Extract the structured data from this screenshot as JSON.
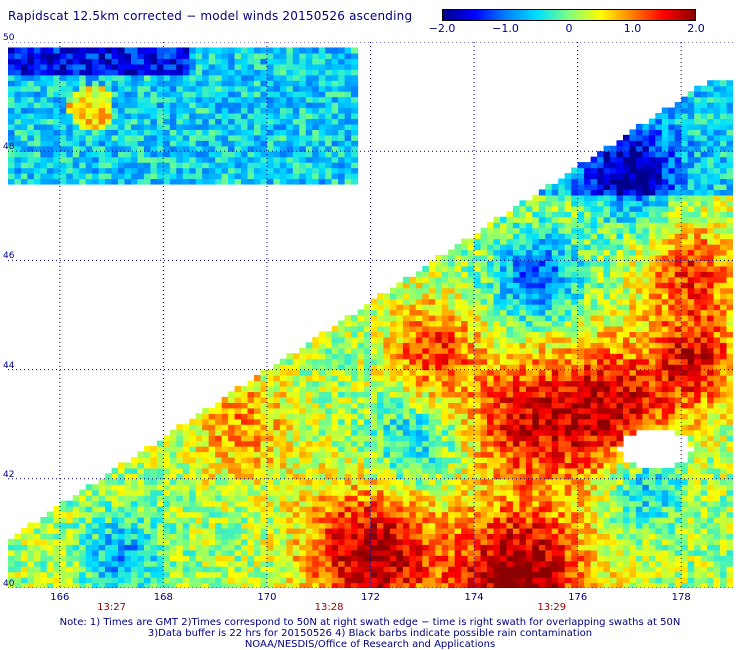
{
  "title": "Rapidscat 12.5km corrected − model winds 20150526 ascending",
  "colorbar": {
    "min": -2.0,
    "max": 2.0,
    "ticks": [
      {
        "value": -2.0,
        "label": "−2.0"
      },
      {
        "value": -1.0,
        "label": "−1.0"
      },
      {
        "value": 0,
        "label": "0"
      },
      {
        "value": 1.0,
        "label": "1.0"
      },
      {
        "value": 2.0,
        "label": "2.0"
      }
    ],
    "colors": [
      "#00008b",
      "#0000ff",
      "#0080ff",
      "#00e0ff",
      "#7fff7f",
      "#ffff00",
      "#ff8000",
      "#ff0000",
      "#8b0000"
    ]
  },
  "map": {
    "lat_range": [
      40,
      50
    ],
    "lon_range": [
      165,
      179
    ],
    "lat_labels": [
      {
        "lat": 50,
        "text": "50"
      },
      {
        "lat": 48,
        "text": "48"
      },
      {
        "lat": 46,
        "text": "46"
      },
      {
        "lat": 44,
        "text": "44"
      },
      {
        "lat": 42,
        "text": "42"
      },
      {
        "lat": 40,
        "text": "40"
      }
    ],
    "lon_labels": [
      {
        "lon": 166,
        "text": "166"
      },
      {
        "lon": 168,
        "text": "168"
      },
      {
        "lon": 170,
        "text": "170"
      },
      {
        "lon": 172,
        "text": "172"
      },
      {
        "lon": 174,
        "text": "174"
      },
      {
        "lon": 176,
        "text": "176"
      },
      {
        "lon": 178,
        "text": "178"
      }
    ],
    "time_labels": [
      {
        "lon": 167,
        "text": "13:27"
      },
      {
        "lon": 171.2,
        "text": "13:28"
      },
      {
        "lon": 175.5,
        "text": "13:29"
      }
    ],
    "grid_color": "#000080"
  },
  "notes": {
    "line1": "Note: 1) Times are GMT 2)Times correspond to 50N at right swath edge − time is right swath for overlapping swaths at 50N",
    "line2": "3)Data buffer is 22 hrs for 20150526 4) Black barbs indicate possible rain contamination",
    "line3": "NOAA/NESDIS/Office of Research and Applications"
  }
}
